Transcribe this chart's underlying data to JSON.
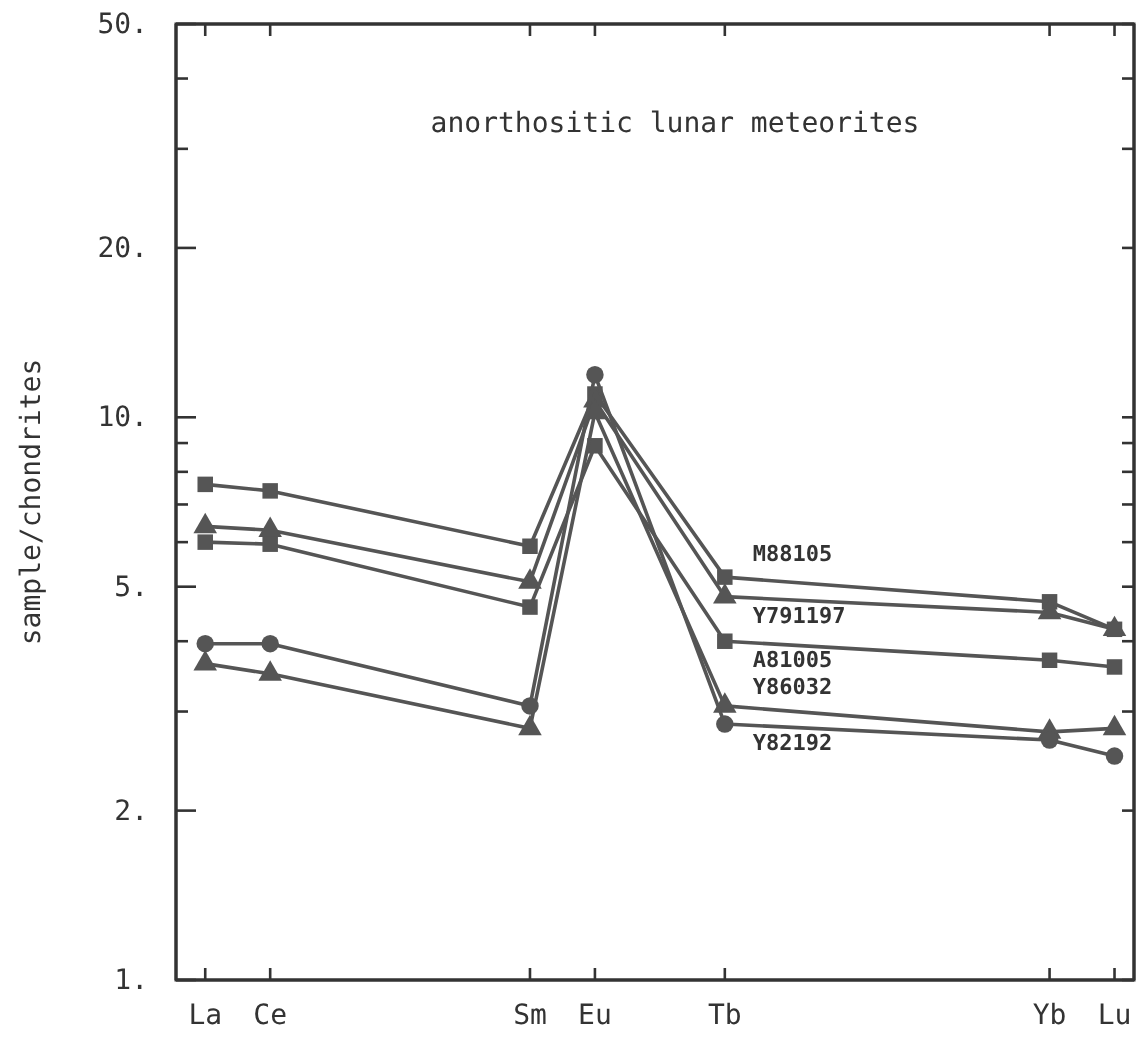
{
  "chart_data": {
    "type": "line",
    "title": "anorthositic lunar meteorites",
    "ylabel": "sample/chondrites",
    "log": true,
    "line_style": "solid",
    "grid": false,
    "categories": [
      "La",
      "Ce",
      null,
      null,
      null,
      "Sm",
      "Eu",
      null,
      "Tb",
      null,
      null,
      null,
      null,
      "Yb",
      "Lu"
    ],
    "ylim": [
      1,
      50
    ],
    "yticks": [
      {
        "value": 1,
        "label": "1."
      },
      {
        "value": 2,
        "label": "2."
      },
      {
        "value": 3,
        "label": null
      },
      {
        "value": 4,
        "label": null
      },
      {
        "value": 5,
        "label": "5."
      },
      {
        "value": 6,
        "label": null
      },
      {
        "value": 7,
        "label": null
      },
      {
        "value": 8,
        "label": null
      },
      {
        "value": 9,
        "label": null
      },
      {
        "value": 10,
        "label": "10."
      },
      {
        "value": 20,
        "label": "20."
      },
      {
        "value": 30,
        "label": null
      },
      {
        "value": 40,
        "label": null
      },
      {
        "value": 50,
        "label": "50."
      }
    ],
    "series": [
      {
        "name": "M88105",
        "color": "#555555",
        "marker": "square",
        "values": [
          7.6,
          7.4,
          null,
          null,
          null,
          5.9,
          11,
          null,
          5.2,
          null,
          null,
          null,
          null,
          4.7,
          4.2
        ]
      },
      {
        "name": "Y791197",
        "color": "#555555",
        "marker": "triangle",
        "values": [
          6.4,
          6.3,
          null,
          null,
          null,
          5.1,
          10.7,
          null,
          4.8,
          null,
          null,
          null,
          null,
          4.5,
          4.2
        ]
      },
      {
        "name": "A81005",
        "color": "#555555",
        "marker": "square",
        "values": [
          6,
          5.95,
          null,
          null,
          null,
          4.6,
          8.9,
          null,
          4,
          null,
          null,
          null,
          null,
          3.7,
          3.6
        ]
      },
      {
        "name": "Y86032",
        "color": "#555555",
        "marker": "triangle",
        "values": [
          3.65,
          3.5,
          null,
          null,
          null,
          2.8,
          10.2,
          null,
          3.07,
          null,
          null,
          null,
          null,
          2.76,
          2.8
        ]
      },
      {
        "name": "Y82192",
        "color": "#555555",
        "marker": "circle",
        "values": [
          3.96,
          3.96,
          null,
          null,
          null,
          3.07,
          11.9,
          null,
          2.85,
          null,
          null,
          null,
          null,
          2.67,
          2.5
        ]
      }
    ]
  }
}
